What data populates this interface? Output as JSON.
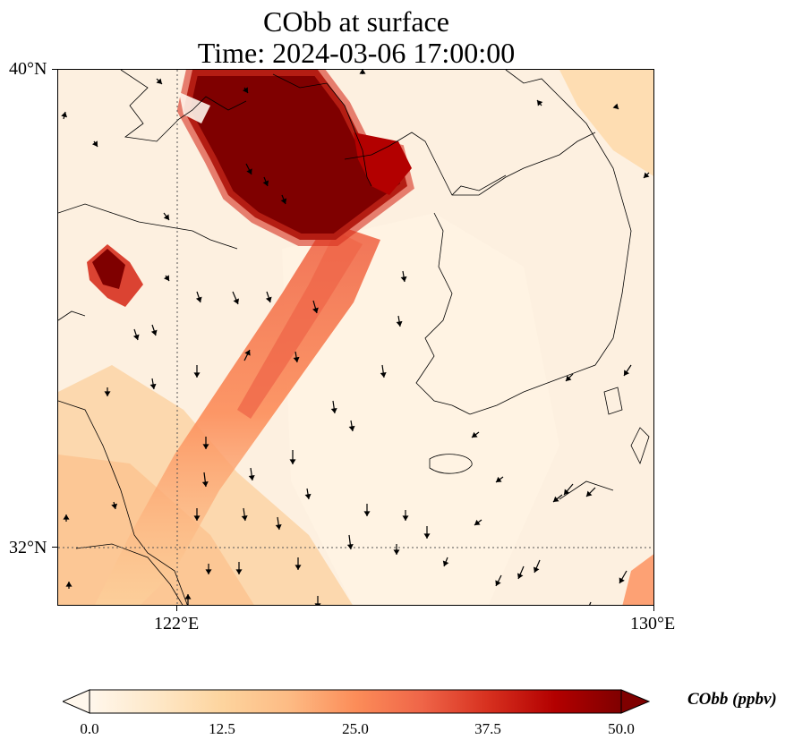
{
  "title": {
    "line1": "CObb at surface",
    "line2": "Time: 2024-03-06 17:00:00"
  },
  "map": {
    "variable": "CObb",
    "level": "surface",
    "lon_range": [
      119.5,
      130.0
    ],
    "lat_range": [
      30.9,
      40.0
    ],
    "gridlines": {
      "lon": [
        122
      ],
      "lat": [
        32
      ],
      "style": "dotted"
    },
    "lat_labels": [
      "40°N",
      "32°N"
    ],
    "lon_labels": [
      "122°E",
      "130°E"
    ],
    "wind_vectors": "black arrows, mostly southward flow",
    "high_concentration_regions": [
      "Bohai Sea / Liaodong region (values ≥ 50 ppbv)",
      "Shandong peninsula hotspot near 120°E, 36.5°N (≥ 50 ppbv)",
      "Plume extending south-southwest over Yellow Sea (12.5–37.5 ppbv)"
    ]
  },
  "colorbar": {
    "label": "CObb (ppbv)",
    "ticks": [
      "0.0",
      "12.5",
      "25.0",
      "37.5",
      "50.0"
    ],
    "min": 0.0,
    "max": 50.0,
    "extend": "both",
    "colormap": "OrRd",
    "colors": [
      "#fff7ec",
      "#fee8c8",
      "#fdd49e",
      "#fdbb84",
      "#fc8d59",
      "#ef6548",
      "#d7301f",
      "#b30000",
      "#7f0000"
    ]
  }
}
